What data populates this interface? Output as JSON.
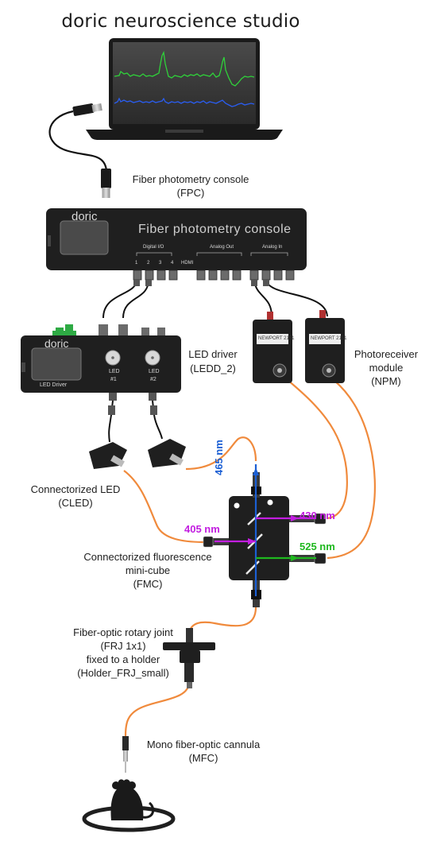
{
  "title": "doric neuroscience studio",
  "labels": {
    "fpc_name": "Fiber photometry console",
    "fpc_code": "(FPC)",
    "ledd_name": "LED driver",
    "ledd_code": "(LEDD_2)",
    "npm_line1": "Photoreceiver",
    "npm_line2": "module",
    "npm_code": "(NPM)",
    "cled_name": "Connectorized LED",
    "cled_code": "(CLED)",
    "fmc_line1": "Connectorized fluorescence",
    "fmc_line2": "mini-cube",
    "fmc_code": "(FMC)",
    "frj_line1": "Fiber-optic rotary joint",
    "frj_line2": "(FRJ 1x1)",
    "frj_line3": "fixed to a holder",
    "frj_line4": "(Holder_FRJ_small)",
    "mfc_name": "Mono fiber-optic cannula",
    "mfc_code": "(MFC)"
  },
  "wavelengths": {
    "w465": "465 nm",
    "w405": "405 nm",
    "w430": "430 nm",
    "w525": "525 nm"
  },
  "device_text": {
    "console_brand": "doric",
    "console_title": "Fiber photometry console",
    "digital_io": "Digital I/O",
    "hdmi": "HDMI",
    "analog_out": "Analog Out",
    "analog_in": "Analog In",
    "port_numbers": [
      "1",
      "2",
      "3",
      "4"
    ],
    "driver_brand": "doric",
    "driver_screen": "LED Driver",
    "led1_line1": "LED",
    "led1_line2": "#1",
    "led2_line1": "LED",
    "led2_line2": "#2",
    "npm1_badge": "NEWPORT 2151",
    "npm2_badge": "NEWPORT 2151"
  },
  "colors": {
    "fiber": "#f08a3c",
    "blue_light": "#1b5fd4",
    "violet_light": "#c21ee0",
    "green_light": "#1fb81f",
    "trace_green": "#2fd13a",
    "trace_blue": "#2a5df0",
    "device_body": "#1f1f1f"
  },
  "icons": [
    "laptop-icon",
    "usb-plug-icon",
    "mouse-icon"
  ]
}
